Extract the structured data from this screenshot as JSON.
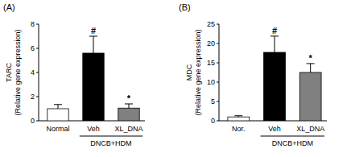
{
  "chart_data": [
    {
      "type": "bar",
      "panel": "(A)",
      "ylabel": "TARC",
      "ylabel_sub": "(Relative gene expression)",
      "categories": [
        "Normal",
        "Veh",
        "XL_DNA"
      ],
      "values": [
        1.0,
        5.6,
        1.05
      ],
      "errors": [
        0.35,
        1.4,
        0.35
      ],
      "colors": [
        "#ffffff",
        "#000000",
        "#808080"
      ],
      "annotations": [
        null,
        "#",
        "*"
      ],
      "groups": [
        null,
        "DNCB+HDM",
        "DNCB+HDM"
      ],
      "ylim": [
        0,
        8
      ],
      "yticks": [
        0,
        2,
        4,
        6,
        8
      ],
      "grid": false
    },
    {
      "type": "bar",
      "panel": "(B)",
      "ylabel": "MDC",
      "ylabel_sub": "(Relative gene expression)",
      "categories": [
        "Nor.",
        "Veh",
        "XL_DNA"
      ],
      "values": [
        1.0,
        17.7,
        12.5
      ],
      "errors": [
        0.3,
        4.2,
        2.3
      ],
      "colors": [
        "#ffffff",
        "#000000",
        "#808080"
      ],
      "annotations": [
        null,
        "#",
        "*"
      ],
      "groups": [
        null,
        "DNCB+HDM",
        "DNCB+HDM"
      ],
      "ylim": [
        0,
        25
      ],
      "yticks": [
        0,
        5,
        10,
        15,
        20,
        25
      ],
      "grid": false
    }
  ]
}
